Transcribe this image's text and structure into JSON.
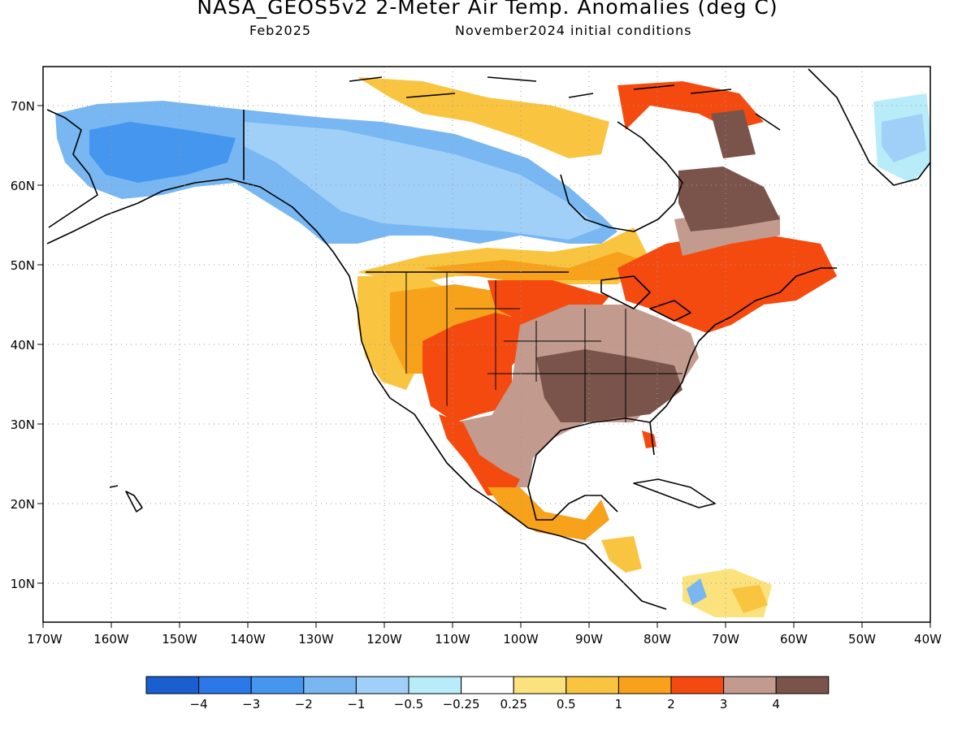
{
  "title": "NASA_GEOS5v2 2-Meter Air Temp. Anomalies (deg C)",
  "subtitle_left": "Feb2025",
  "subtitle_right": "November2024 initial conditions",
  "axes": {
    "lon_labels": [
      "170W",
      "160W",
      "150W",
      "140W",
      "130W",
      "120W",
      "110W",
      "100W",
      "90W",
      "80W",
      "70W",
      "60W",
      "50W",
      "40W"
    ],
    "lat_labels": [
      "70N",
      "60N",
      "50N",
      "40N",
      "30N",
      "20N",
      "10N"
    ]
  },
  "colorbar": {
    "labels": [
      "-4",
      "-3",
      "-2",
      "-1",
      "-0.5",
      "-0.25",
      "0.25",
      "0.5",
      "1",
      "2",
      "3",
      "4"
    ],
    "colors": [
      "#1a5fd0",
      "#2b78e8",
      "#4496ee",
      "#78b7f2",
      "#a0d0f7",
      "#b8ecf8",
      "#ffffff",
      "#fbe27c",
      "#f9c540",
      "#f7a21a",
      "#f44a0f",
      "#c29a8e",
      "#7a544a"
    ]
  },
  "map_data": {
    "region": "North America",
    "lon_range": [
      -170,
      -40
    ],
    "lat_range": [
      5,
      75
    ],
    "variable": "2-Meter Air Temp. Anomalies (deg C)",
    "regions": [
      {
        "area": "Alaska",
        "anomaly_class": "-1 to -2"
      },
      {
        "area": "Western Canada",
        "anomaly_class": "-0.5 to -1"
      },
      {
        "area": "Hudson Bay / Great Lakes",
        "anomaly_class": "0.5 to 1"
      },
      {
        "area": "Northern Quebec",
        "anomaly_class": "> 4"
      },
      {
        "area": "Southeastern Canada",
        "anomaly_class": "2 to 3"
      },
      {
        "area": "Western US",
        "anomaly_class": "1 to 2"
      },
      {
        "area": "Southwestern US / Rockies",
        "anomaly_class": "2 to 3"
      },
      {
        "area": "Central US",
        "anomaly_class": "3 to 4"
      },
      {
        "area": "Southeastern US",
        "anomaly_class": "> 4"
      },
      {
        "area": "Mexico",
        "anomaly_class": "2 to 4"
      },
      {
        "area": "Greenland",
        "anomaly_class": "-0.25 to -1"
      }
    ]
  }
}
